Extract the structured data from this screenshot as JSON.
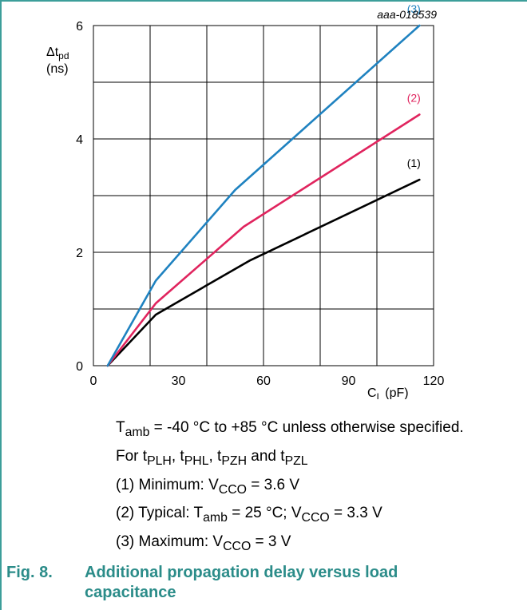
{
  "chart_data": {
    "type": "line",
    "code": "aaa-018539",
    "ylabel": {
      "sym": "Δt",
      "sub": "pd",
      "unit": "(ns)"
    },
    "xlabel": {
      "sym": "C",
      "sub": "L",
      "unit": "(pF)"
    },
    "xlim": [
      0,
      120
    ],
    "ylim": [
      0,
      6
    ],
    "x_ticks": [
      "0",
      "30",
      "60",
      "90",
      "120"
    ],
    "y_ticks": [
      "0",
      "2",
      "4",
      "6"
    ],
    "grid": true,
    "series": [
      {
        "name": "(1)",
        "color": "#000000",
        "points": [
          [
            5,
            0
          ],
          [
            22,
            0.9
          ],
          [
            55,
            1.85
          ],
          [
            115,
            3.28
          ]
        ]
      },
      {
        "name": "(2)",
        "color": "#e0245e",
        "points": [
          [
            5,
            0
          ],
          [
            22,
            1.1
          ],
          [
            53,
            2.45
          ],
          [
            115,
            4.43
          ]
        ]
      },
      {
        "name": "(3)",
        "color": "#1f82c0",
        "points": [
          [
            5,
            0
          ],
          [
            22,
            1.5
          ],
          [
            50,
            3.1
          ],
          [
            115,
            6.0
          ]
        ]
      }
    ]
  },
  "notes": {
    "line1": {
      "a": "T",
      "a_sub": "amb",
      "b": " = -40 °C to +85 °C unless otherwise specified."
    },
    "line2": {
      "p0": "For t",
      "s1": "PLH",
      "p1": ", t",
      "s2": "PHL",
      "p2": ", t",
      "s3": "PZH",
      "p3": " and t",
      "s4": "PZL"
    },
    "line3": {
      "a": "(1) Minimum: V",
      "a_sub": "CCO",
      "b": " = 3.6 V"
    },
    "line4": {
      "a": "(2) Typical: T",
      "a_sub": "amb",
      "b": " = 25 °C; V",
      "b_sub": "CCO",
      "c": " = 3.3 V"
    },
    "line5": {
      "a": "(3) Maximum: V",
      "a_sub": "CCO",
      "b": " = 3 V"
    }
  },
  "caption": {
    "number": "Fig. 8.",
    "title_line1": "Additional propagation delay versus load",
    "title_line2": "capacitance"
  }
}
